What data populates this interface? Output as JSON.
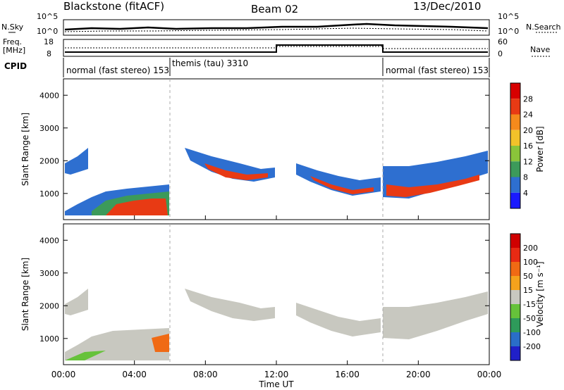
{
  "header": {
    "station": "Blackstone (fitACF)",
    "beam": "Beam 02",
    "date": "13/Dec/2010"
  },
  "strips": {
    "nsky_label": "N.Sky",
    "nsearch_label": "N.Search",
    "noise_ticks": [
      "10^5",
      "10^0"
    ],
    "freq_label_line1": "Freq.",
    "freq_label_line2": "[MHz]",
    "freq_ticks": [
      "18",
      "8"
    ],
    "nave_label": "Nave",
    "nave_ticks": [
      "60",
      "0"
    ],
    "cpid_label": "CPID"
  },
  "cpid_segments": [
    {
      "label": "normal (fast stereo) 153",
      "start_h": 0,
      "end_h": 6
    },
    {
      "label": "themis (tau) 3310",
      "start_h": 6,
      "end_h": 18
    },
    {
      "label": "normal (fast stereo) 153",
      "start_h": 18,
      "end_h": 24
    }
  ],
  "chart_data": [
    {
      "type": "heatmap",
      "name": "power",
      "ylabel": "Slant Range [km]",
      "ylim": [
        200,
        4500
      ],
      "yticks": [
        "1000",
        "2000",
        "3000",
        "4000"
      ],
      "colorbar_label": "Power [dB]",
      "colorbar_ticks": [
        "4",
        "8",
        "12",
        "16",
        "20",
        "24",
        "28"
      ],
      "colorbar_colors": [
        "#1a1aff",
        "#2e6fd0",
        "#3c9a5a",
        "#8ac43a",
        "#f2c22a",
        "#f58a1c",
        "#e83a14",
        "#d70000"
      ]
    },
    {
      "type": "heatmap",
      "name": "velocity",
      "ylabel": "Slant Range [km]",
      "ylim": [
        200,
        4500
      ],
      "yticks": [
        "1000",
        "2000",
        "3000",
        "4000"
      ],
      "colorbar_label": "Velocity [m s⁻¹]",
      "colorbar_ticks": [
        "200",
        "100",
        "50",
        "15",
        "-15",
        "-50",
        "-100",
        "-200"
      ],
      "colorbar_colors": [
        "#2020c8",
        "#2a6ec8",
        "#2e9a5a",
        "#66c23a",
        "#c8c8c0",
        "#f5a21c",
        "#f06a14",
        "#e82a14",
        "#d00000"
      ]
    }
  ],
  "xaxis": {
    "label": "Time UT",
    "ticks": [
      "00:00",
      "04:00",
      "08:00",
      "12:00",
      "16:00",
      "20:00",
      "00:00"
    ]
  }
}
